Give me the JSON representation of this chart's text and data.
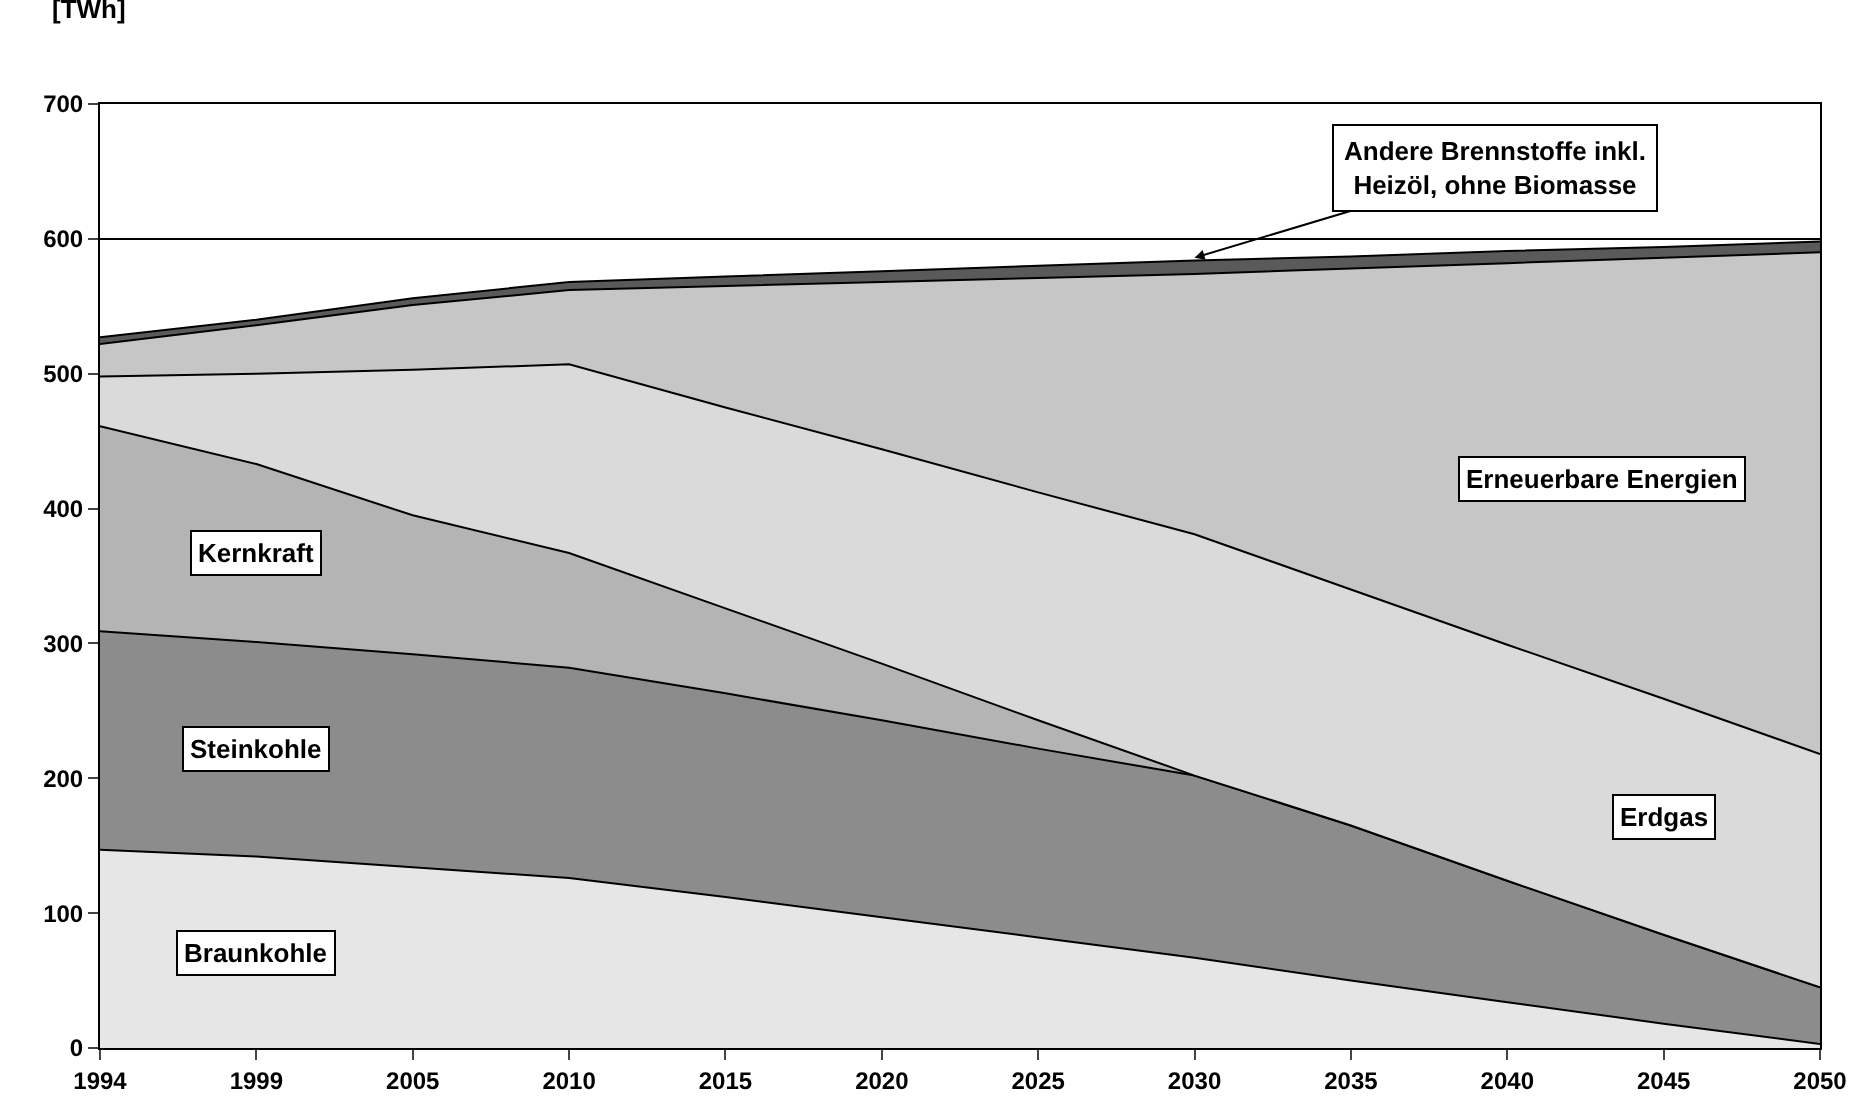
{
  "chart_data": {
    "type": "area",
    "stacked": true,
    "ylabel": "[TWh]",
    "categories": [
      "1994",
      "1999",
      "2005",
      "2010",
      "2015",
      "2020",
      "2025",
      "2030",
      "2035",
      "2040",
      "2045",
      "2050"
    ],
    "series": [
      {
        "name": "Braunkohle",
        "color": "#e6e6e6",
        "values": [
          147,
          142,
          134,
          126,
          112,
          97,
          82,
          67,
          50,
          34,
          18,
          3
        ]
      },
      {
        "name": "Steinkohle",
        "color": "#8c8c8c",
        "values": [
          162,
          159,
          158,
          156,
          151,
          146,
          140,
          135,
          115,
          90,
          66,
          42
        ]
      },
      {
        "name": "Kernkraft",
        "color": "#b4b4b4",
        "values": [
          152,
          132,
          103,
          85,
          63,
          42,
          21,
          0,
          0,
          0,
          0,
          0
        ]
      },
      {
        "name": "Erdgas",
        "color": "#dadada",
        "values": [
          37,
          67,
          108,
          140,
          149,
          159,
          169,
          179,
          175,
          175,
          175,
          173
        ]
      },
      {
        "name": "Erneuerbare Energien",
        "color": "#c6c6c6",
        "values": [
          24,
          36,
          48,
          55,
          90,
          124,
          159,
          193,
          238,
          283,
          327,
          372
        ]
      },
      {
        "color": "#5a5a5a",
        "values": [
          5,
          4,
          5,
          6,
          7,
          8,
          9,
          10,
          9,
          9,
          8,
          8
        ]
      }
    ],
    "annotations": [
      {
        "text": "Andere Brennstoffe inkl.\nHeizöl, ohne Biomasse",
        "x": "2030",
        "y": 586
      }
    ],
    "ylim": [
      0,
      700
    ],
    "yticks": [
      0,
      100,
      200,
      300,
      400,
      500,
      600,
      700
    ],
    "grid": "y",
    "legend": false
  }
}
